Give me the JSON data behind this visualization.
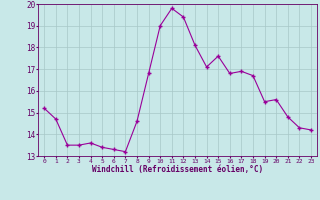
{
  "x": [
    0,
    1,
    2,
    3,
    4,
    5,
    6,
    7,
    8,
    9,
    10,
    11,
    12,
    13,
    14,
    15,
    16,
    17,
    18,
    19,
    20,
    21,
    22,
    23
  ],
  "y": [
    15.2,
    14.7,
    13.5,
    13.5,
    13.6,
    13.4,
    13.3,
    13.2,
    14.6,
    16.8,
    19.0,
    19.8,
    19.4,
    18.1,
    17.1,
    17.6,
    16.8,
    16.9,
    16.7,
    15.5,
    15.6,
    14.8,
    14.3,
    14.2
  ],
  "line_color": "#990099",
  "marker_color": "#990099",
  "background_color": "#c8e8e8",
  "grid_color": "#a8c8c8",
  "xlabel": "Windchill (Refroidissement éolien,°C)",
  "xlabel_color": "#660066",
  "tick_color": "#660066",
  "ylim": [
    13,
    20
  ],
  "xlim_min": -0.5,
  "xlim_max": 23.5,
  "yticks": [
    13,
    14,
    15,
    16,
    17,
    18,
    19,
    20
  ],
  "xticks": [
    0,
    1,
    2,
    3,
    4,
    5,
    6,
    7,
    8,
    9,
    10,
    11,
    12,
    13,
    14,
    15,
    16,
    17,
    18,
    19,
    20,
    21,
    22,
    23
  ],
  "figsize": [
    3.2,
    2.0
  ],
  "dpi": 100
}
